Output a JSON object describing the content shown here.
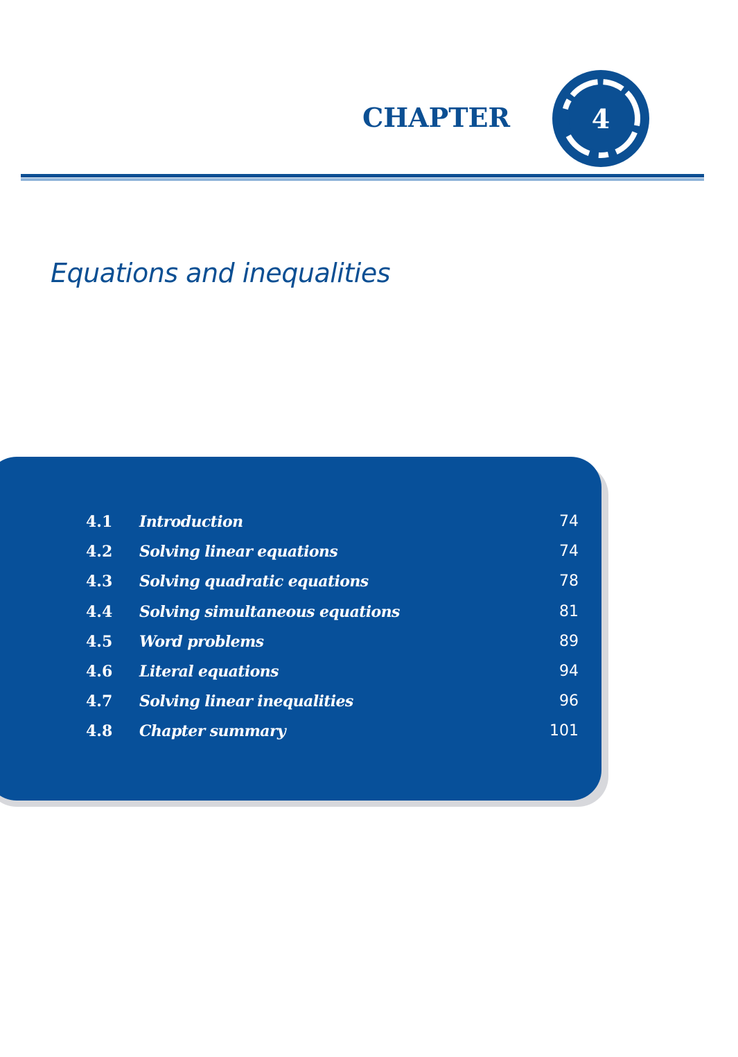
{
  "header": {
    "chapter_label": "CHAPTER",
    "chapter_number": "4"
  },
  "chapter_title": "Equations and inequalities",
  "toc": [
    {
      "num": "4.1",
      "title": "Introduction",
      "page": "74"
    },
    {
      "num": "4.2",
      "title": "Solving linear equations",
      "page": "74"
    },
    {
      "num": "4.3",
      "title": "Solving quadratic equations",
      "page": "78"
    },
    {
      "num": "4.4",
      "title": "Solving simultaneous equations",
      "page": "81"
    },
    {
      "num": "4.5",
      "title": "Word problems",
      "page": "89"
    },
    {
      "num": "4.6",
      "title": "Literal equations",
      "page": "94"
    },
    {
      "num": "4.7",
      "title": "Solving linear inequalities",
      "page": "96"
    },
    {
      "num": "4.8",
      "title": "Chapter summary",
      "page": "101"
    }
  ],
  "colors": {
    "brand_blue": "#0b4f93",
    "panel_blue": "#07509a",
    "rule_light": "#8fb4d9",
    "panel_shadow": "#d7d8dc"
  }
}
